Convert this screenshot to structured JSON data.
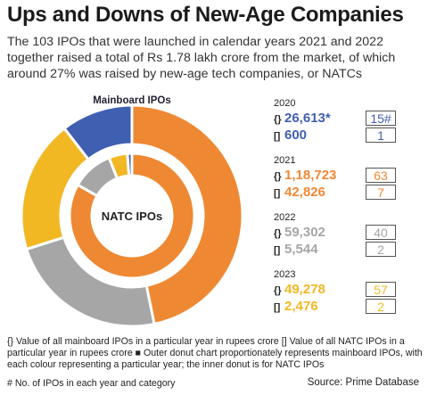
{
  "title": "Ups and Downs of New-Age Companies",
  "subtitle": "The 103 IPOs that were launched in calendar years 2021 and 2022 together raised a total of Rs 1.78 lakh crore from the market, of which around 27% was raised by new-age tech companies, or NATCs",
  "chart_data": {
    "type": "pie",
    "subtype": "double-donut",
    "outer_label": "Mainboard IPOs",
    "inner_label": "NATC IPOs",
    "years": [
      {
        "year": "2020",
        "mainboard_value": "26,613*",
        "mainboard_count": "15#",
        "natc_value": "600",
        "natc_count": "1",
        "color": "#3f5fb0"
      },
      {
        "year": "2021",
        "mainboard_value": "1,18,723",
        "mainboard_count": "63",
        "natc_value": "42,826",
        "natc_count": "7",
        "color": "#ef8833"
      },
      {
        "year": "2022",
        "mainboard_value": "59,302",
        "mainboard_count": "40",
        "natc_value": "5,544",
        "natc_count": "2",
        "color": "#a6a6a6"
      },
      {
        "year": "2023",
        "mainboard_value": "49,278",
        "mainboard_count": "57",
        "natc_value": "2,476",
        "natc_count": "2",
        "color": "#f2b824"
      }
    ],
    "outer_values": [
      118723,
      59302,
      49278,
      26613
    ],
    "inner_values": [
      42826,
      5544,
      2476,
      600
    ],
    "order": [
      "2021",
      "2022",
      "2023",
      "2020"
    ]
  },
  "brackets": {
    "mainboard": "{}",
    "natc": "[]"
  },
  "footnote": "{} Value of all mainboard IPOs in a particular year in rupees crore  [] Value of all NATC IPOs in a particular year in rupees crore ■ Outer donut chart proportionately represents mainboard IPOs, with each colour representing a particular year; the inner donut is for NATC IPOs",
  "footnote_count": "# No. of IPOs in each year and category",
  "source": "Source: Prime Database"
}
